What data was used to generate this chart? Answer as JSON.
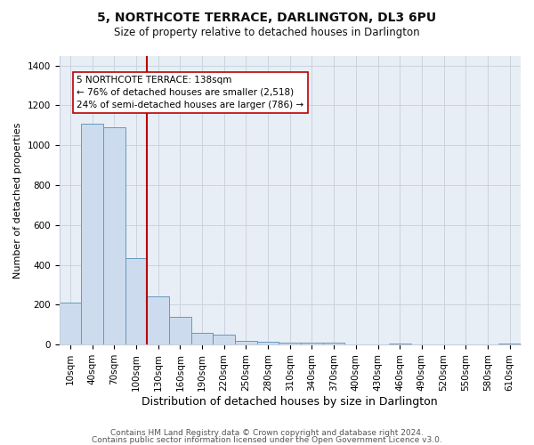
{
  "title": "5, NORTHCOTE TERRACE, DARLINGTON, DL3 6PU",
  "subtitle": "Size of property relative to detached houses in Darlington",
  "xlabel": "Distribution of detached houses by size in Darlington",
  "ylabel": "Number of detached properties",
  "bar_labels": [
    "10sqm",
    "40sqm",
    "70sqm",
    "100sqm",
    "130sqm",
    "160sqm",
    "190sqm",
    "220sqm",
    "250sqm",
    "280sqm",
    "310sqm",
    "340sqm",
    "370sqm",
    "400sqm",
    "430sqm",
    "460sqm",
    "490sqm",
    "520sqm",
    "550sqm",
    "580sqm",
    "610sqm"
  ],
  "bar_values": [
    210,
    1110,
    1090,
    435,
    240,
    140,
    60,
    48,
    20,
    15,
    10,
    8,
    8,
    0,
    0,
    5,
    0,
    0,
    0,
    0,
    5
  ],
  "bar_color": "#ccdcee",
  "bar_edge_color": "#6699bb",
  "vline_pos": 3.5,
  "vline_color": "#bb0000",
  "annotation_text": "5 NORTHCOTE TERRACE: 138sqm\n← 76% of detached houses are smaller (2,518)\n24% of semi-detached houses are larger (786) →",
  "annotation_box_facecolor": "#ffffff",
  "annotation_box_edgecolor": "#bb0000",
  "ylim": [
    0,
    1450
  ],
  "yticks": [
    0,
    200,
    400,
    600,
    800,
    1000,
    1200,
    1400
  ],
  "footer1": "Contains HM Land Registry data © Crown copyright and database right 2024.",
  "footer2": "Contains public sector information licensed under the Open Government Licence v3.0.",
  "fig_bg_color": "#ffffff",
  "plot_bg_color": "#e8eef5",
  "grid_color": "#c8cedb",
  "title_fontsize": 10,
  "subtitle_fontsize": 8.5,
  "xlabel_fontsize": 9,
  "ylabel_fontsize": 8,
  "tick_fontsize": 7.5,
  "footer_fontsize": 6.5,
  "annot_fontsize": 7.5
}
